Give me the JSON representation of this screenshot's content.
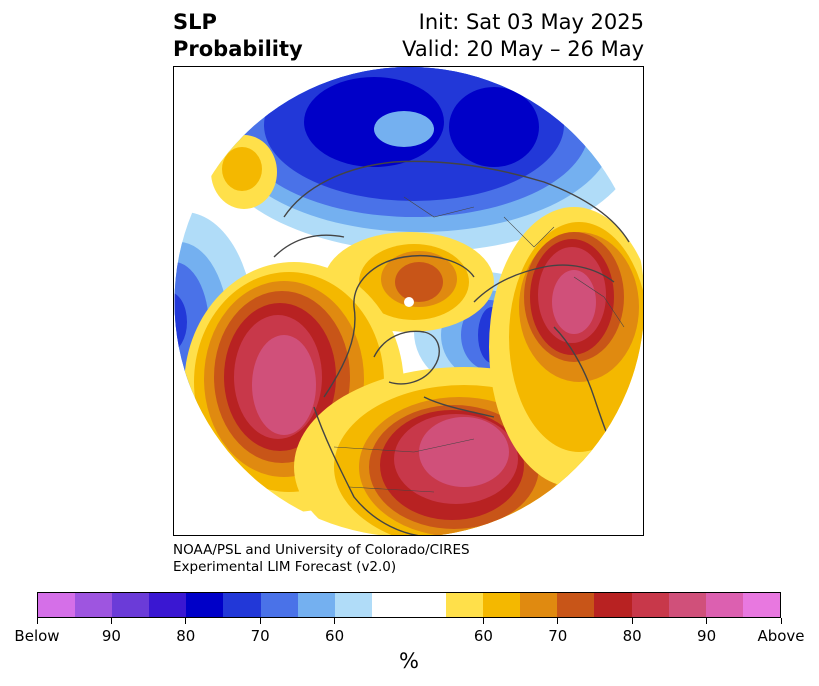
{
  "title": {
    "left_line1": "SLP",
    "left_line2": "Probability",
    "right_line1": "Init: Sat 03 May 2025",
    "right_line2": "Valid: 20 May – 26 May"
  },
  "credit": {
    "line1": "NOAA/PSL and University of Colorado/CIRES",
    "line2": "Experimental LIM Forecast (v2.0)"
  },
  "colorbar": {
    "colors": [
      "#d56fe8",
      "#9e55e0",
      "#6b3bd8",
      "#3a17d2",
      "#0000c8",
      "#2238d8",
      "#4a72e8",
      "#74b0f0",
      "#b0dcf8",
      "#ffffff",
      "#ffffff",
      "#ffe04a",
      "#f4b800",
      "#e08a10",
      "#c85518",
      "#b82222",
      "#c8384a",
      "#d0507a",
      "#dc60b0",
      "#e878e0"
    ],
    "labels": [
      "Below",
      "90",
      "80",
      "70",
      "60",
      "60",
      "70",
      "80",
      "90",
      "Above"
    ],
    "unit": "%"
  },
  "map": {
    "colors": {
      "blue_light": "#b0dcf8",
      "blue_2": "#74b0f0",
      "blue_3": "#4a72e8",
      "blue_4": "#2238d8",
      "blue_5": "#0000c8",
      "yellow": "#ffe04a",
      "gold": "#f4b800",
      "orange": "#e08a10",
      "dark_orange": "#c85518",
      "red": "#b82222",
      "crimson": "#c8384a",
      "pink": "#d0507a"
    }
  }
}
